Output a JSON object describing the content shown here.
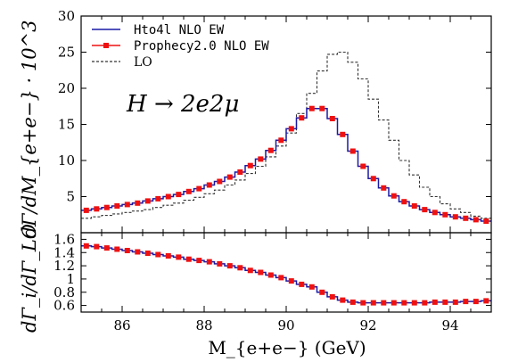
{
  "chart_data": [
    {
      "type": "line",
      "panel": "main",
      "ylabel": "dΓ/dM_{e+e−} · 10^3",
      "annotation": "H → 2e2μ",
      "xlim": [
        85.0,
        95.0
      ],
      "ylim": [
        0,
        30
      ],
      "y_ticks": [
        "5",
        "10",
        "15",
        "20",
        "25",
        "30"
      ],
      "y_tick_values": [
        5,
        10,
        15,
        20,
        25,
        30
      ],
      "legend_position": "top-left",
      "legend_labels": [
        "Hto4l NLO EW",
        "Prophecy2.0 NLO EW",
        "LO"
      ],
      "bin_edges": [
        85.0,
        85.25,
        85.5,
        85.75,
        86.0,
        86.25,
        86.5,
        86.75,
        87.0,
        87.25,
        87.5,
        87.75,
        88.0,
        88.25,
        88.5,
        88.75,
        89.0,
        89.25,
        89.5,
        89.75,
        90.0,
        90.25,
        90.5,
        90.75,
        91.0,
        91.25,
        91.5,
        91.75,
        92.0,
        92.25,
        92.5,
        92.75,
        93.0,
        93.25,
        93.5,
        93.75,
        94.0,
        94.25,
        94.5,
        94.75,
        95.0
      ],
      "x": [
        85.125,
        85.375,
        85.625,
        85.875,
        86.125,
        86.375,
        86.625,
        86.875,
        87.125,
        87.375,
        87.625,
        87.875,
        88.125,
        88.375,
        88.625,
        88.875,
        89.125,
        89.375,
        89.625,
        89.875,
        90.125,
        90.375,
        90.625,
        90.875,
        91.125,
        91.375,
        91.625,
        91.875,
        92.125,
        92.375,
        92.625,
        92.875,
        93.125,
        93.375,
        93.625,
        93.875,
        94.125,
        94.375,
        94.625,
        94.875
      ],
      "series": [
        {
          "name": "Hto4l NLO EW",
          "color": "#1a1aa6",
          "style": "solid-step",
          "values": [
            3.1,
            3.3,
            3.5,
            3.7,
            3.9,
            4.1,
            4.4,
            4.7,
            5.0,
            5.3,
            5.7,
            6.1,
            6.6,
            7.1,
            7.7,
            8.4,
            9.3,
            10.2,
            11.4,
            12.8,
            14.4,
            15.9,
            17.2,
            17.2,
            15.8,
            13.6,
            11.3,
            9.2,
            7.5,
            6.2,
            5.1,
            4.3,
            3.7,
            3.2,
            2.8,
            2.5,
            2.2,
            2.0,
            1.8,
            1.6
          ]
        },
        {
          "name": "Prophecy2.0 NLO EW",
          "color": "#ee1111",
          "style": "square-markers",
          "values": [
            3.1,
            3.3,
            3.5,
            3.7,
            3.9,
            4.1,
            4.4,
            4.7,
            5.0,
            5.3,
            5.7,
            6.1,
            6.6,
            7.1,
            7.7,
            8.4,
            9.3,
            10.2,
            11.4,
            12.8,
            14.4,
            15.9,
            17.2,
            17.2,
            15.8,
            13.6,
            11.3,
            9.2,
            7.5,
            6.2,
            5.1,
            4.3,
            3.7,
            3.2,
            2.8,
            2.5,
            2.2,
            2.0,
            1.8,
            1.6
          ]
        },
        {
          "name": "LO",
          "color": "#333333",
          "style": "dashed-step",
          "values": [
            2.0,
            2.2,
            2.4,
            2.6,
            2.8,
            3.0,
            3.2,
            3.5,
            3.8,
            4.1,
            4.5,
            4.9,
            5.4,
            5.9,
            6.6,
            7.3,
            8.2,
            9.2,
            10.5,
            12.0,
            13.8,
            16.5,
            19.3,
            22.4,
            24.7,
            25.0,
            23.6,
            21.3,
            18.5,
            15.6,
            12.8,
            10.0,
            8.0,
            6.3,
            5.0,
            4.0,
            3.3,
            2.8,
            2.3,
            2.0
          ]
        }
      ]
    },
    {
      "type": "line",
      "panel": "ratio",
      "ylabel": "dΓ_i/dΓ_LO",
      "xlabel": "M_{e+e−} (GeV)",
      "xlim": [
        85.0,
        95.0
      ],
      "ylim": [
        0.5,
        1.7
      ],
      "x_ticks": [
        "86",
        "88",
        "90",
        "92",
        "94"
      ],
      "x_tick_values": [
        86,
        88,
        90,
        92,
        94
      ],
      "y_ticks": [
        "0.6",
        "0.8",
        "1",
        "1.2",
        "1.4",
        "1.6"
      ],
      "y_tick_values": [
        0.6,
        0.8,
        1.0,
        1.2,
        1.4,
        1.6
      ],
      "series": [
        {
          "name": "Hto4l NLO EW",
          "color": "#1a1aa6",
          "style": "solid-step",
          "values": [
            1.5,
            1.49,
            1.47,
            1.45,
            1.43,
            1.41,
            1.39,
            1.37,
            1.35,
            1.33,
            1.3,
            1.28,
            1.26,
            1.23,
            1.2,
            1.17,
            1.13,
            1.1,
            1.06,
            1.02,
            0.97,
            0.92,
            0.88,
            0.8,
            0.73,
            0.68,
            0.65,
            0.64,
            0.64,
            0.64,
            0.64,
            0.64,
            0.64,
            0.64,
            0.65,
            0.65,
            0.65,
            0.66,
            0.66,
            0.67
          ]
        },
        {
          "name": "Prophecy2.0 NLO EW",
          "color": "#ee1111",
          "style": "square-markers",
          "values": [
            1.5,
            1.49,
            1.47,
            1.45,
            1.43,
            1.41,
            1.39,
            1.37,
            1.35,
            1.33,
            1.3,
            1.28,
            1.26,
            1.23,
            1.2,
            1.17,
            1.13,
            1.1,
            1.06,
            1.02,
            0.97,
            0.92,
            0.88,
            0.8,
            0.73,
            0.68,
            0.65,
            0.64,
            0.64,
            0.64,
            0.64,
            0.64,
            0.64,
            0.64,
            0.65,
            0.65,
            0.65,
            0.66,
            0.66,
            0.67
          ]
        }
      ]
    }
  ]
}
